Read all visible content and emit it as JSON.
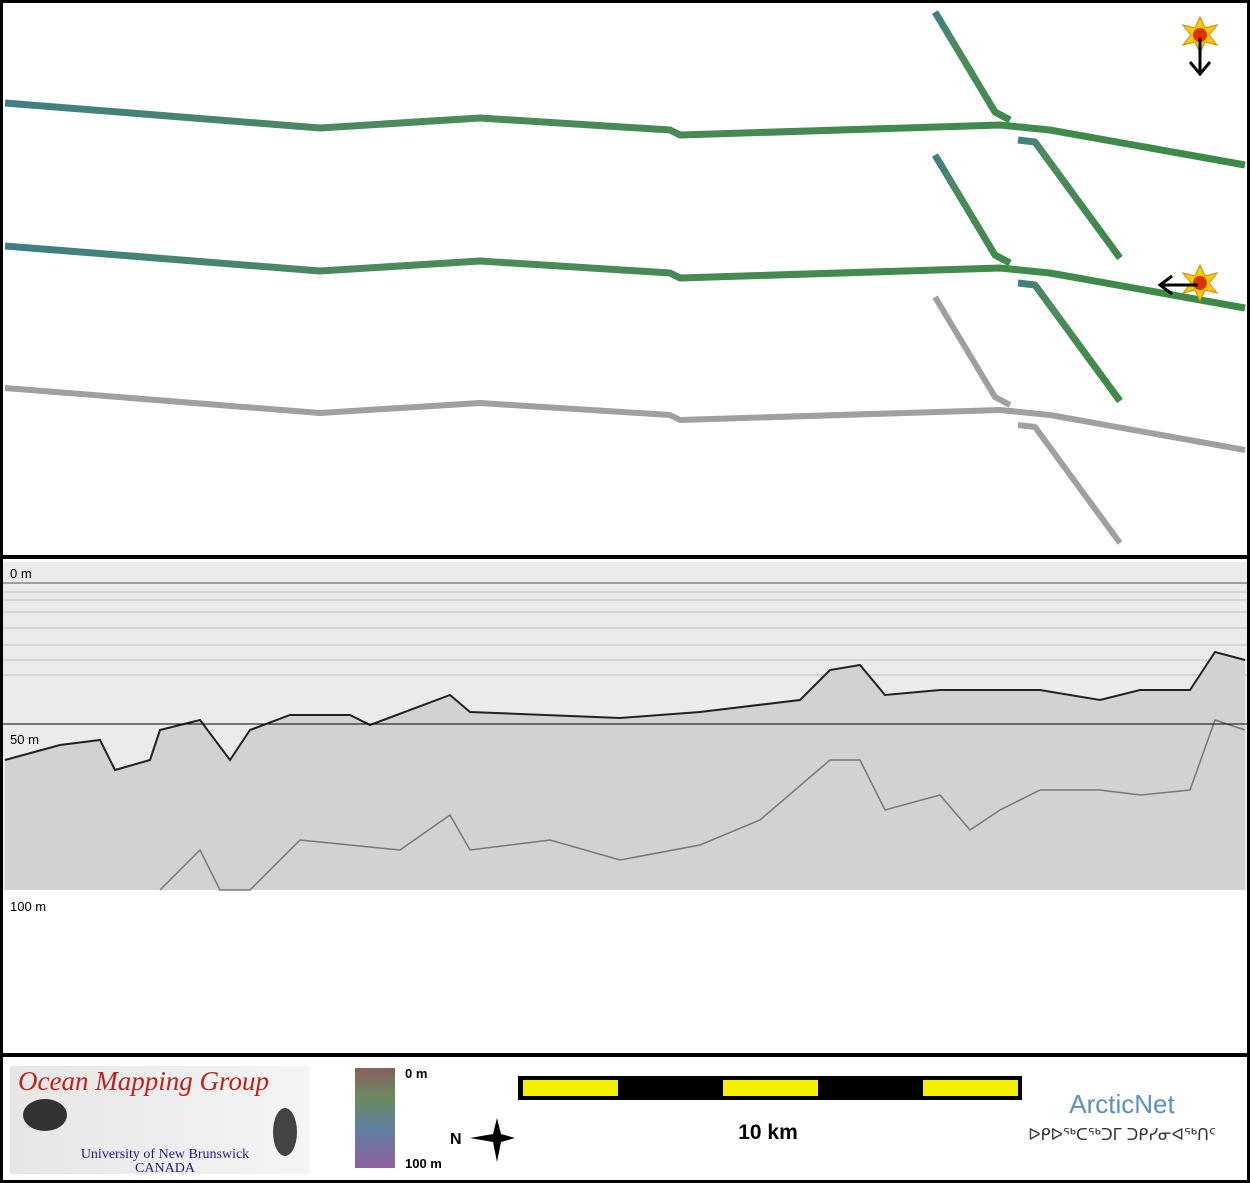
{
  "profile": {
    "depth_labels": [
      "0 m",
      "50 m",
      "100 m"
    ]
  },
  "footer": {
    "logo": {
      "title": "Ocean Mapping Group",
      "university": "University of New Brunswick",
      "country": "CANADA"
    },
    "colorbar": {
      "top": "0 m",
      "bottom": "100 m"
    },
    "compass": "N",
    "scale": "10 km",
    "partner": {
      "name": "ArcticNet",
      "syllabics": "ᐅᑭᐅᖅᑕᖅᑐᒥ ᑐᑭᓯᓂᐊᖅᑎᑦ"
    }
  }
}
